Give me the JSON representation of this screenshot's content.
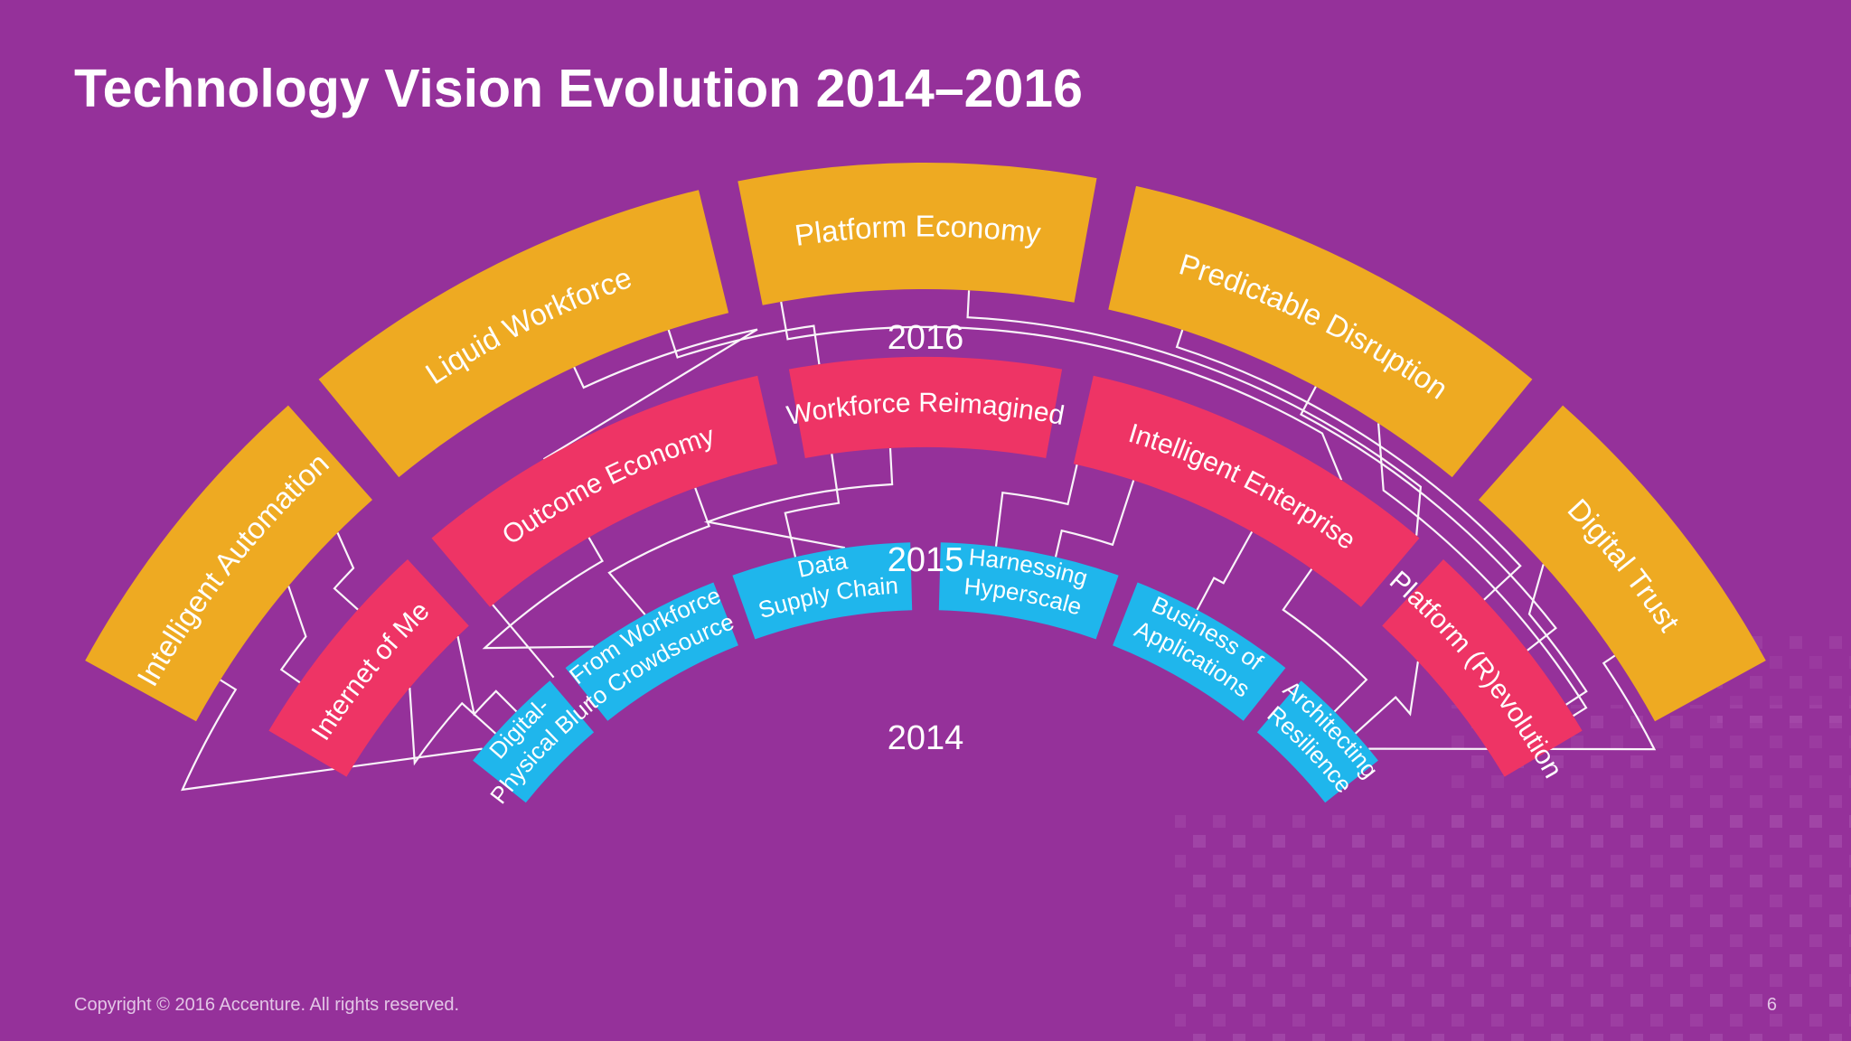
{
  "title": "Technology Vision Evolution 2014–2016",
  "footer": {
    "copyright": "Copyright © 2016 Accenture. All rights reserved.",
    "page_number": "6"
  },
  "colors": {
    "background": "#95319a",
    "ring_2016": "#eeaa22",
    "ring_2015": "#ee3465",
    "ring_2014": "#1fb6ec",
    "connector": "#ffffff"
  },
  "years": {
    "y2016": "2016",
    "y2015": "2015",
    "y2014": "2014"
  },
  "rings": {
    "r2016": [
      {
        "label": "Intelligent Automation"
      },
      {
        "label": "Liquid Workforce"
      },
      {
        "label": "Platform Economy"
      },
      {
        "label": "Predictable Disruption"
      },
      {
        "label": "Digital Trust"
      }
    ],
    "r2015": [
      {
        "label": "Internet of Me"
      },
      {
        "label": "Outcome Economy"
      },
      {
        "label": "Workforce Reimagined"
      },
      {
        "label": "Intelligent Enterprise"
      },
      {
        "label": "Platform (R)evolution"
      }
    ],
    "r2014": [
      {
        "line1": "Digital-",
        "line2": "Physical Blur"
      },
      {
        "line1": "From Workforce",
        "line2": "to Crowdsource"
      },
      {
        "line1": "Data",
        "line2": "Supply Chain"
      },
      {
        "line1": "Harnessing",
        "line2": "Hyperscale"
      },
      {
        "line1": "Business of",
        "line2": "Applications"
      },
      {
        "line1": "Architecting",
        "line2": "Resilience"
      }
    ]
  }
}
